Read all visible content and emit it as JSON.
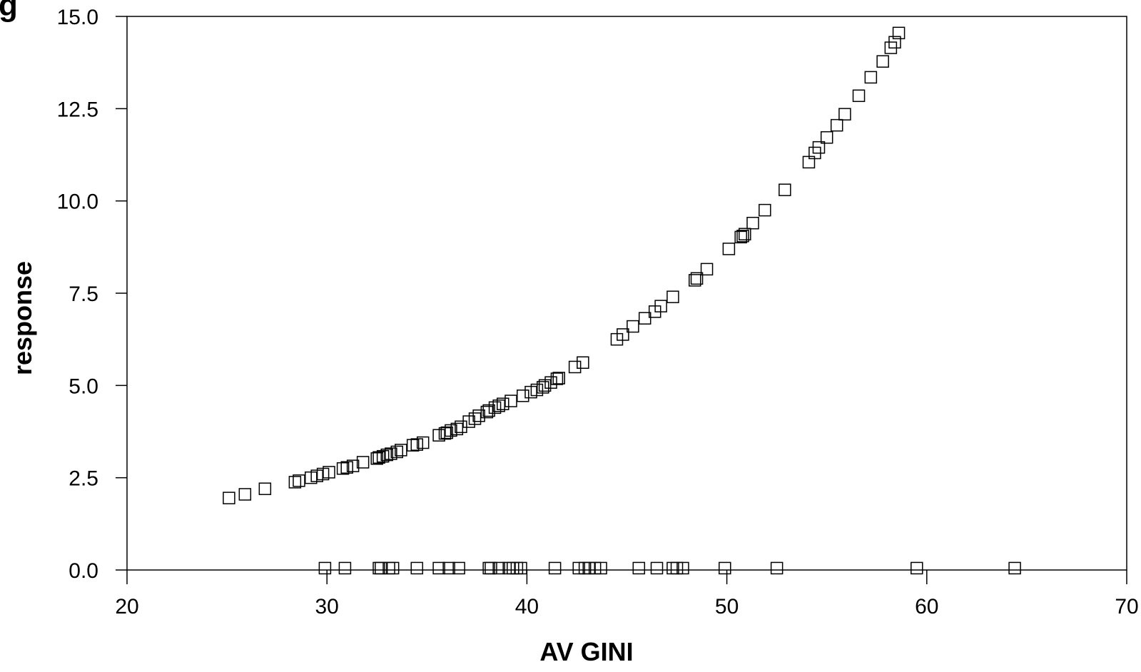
{
  "chart_data": {
    "type": "scatter",
    "title_fragment": "g",
    "xlabel": "AV GINI",
    "ylabel": "response",
    "xlim": [
      20,
      70
    ],
    "ylim": [
      0,
      15
    ],
    "xticks": [
      "20",
      "30",
      "40",
      "50",
      "60",
      "70"
    ],
    "yticks": [
      "0.0",
      "2.5",
      "5.0",
      "7.5",
      "10.0",
      "12.5",
      "15.0"
    ],
    "marker": "open-square",
    "grid": false,
    "x": [
      25.1,
      25.9,
      26.9,
      28.4,
      28.6,
      29.2,
      29.5,
      29.8,
      30.1,
      30.8,
      31.0,
      31.3,
      31.8,
      32.5,
      32.6,
      32.8,
      33.0,
      33.2,
      33.5,
      33.7,
      34.3,
      34.5,
      34.8,
      35.6,
      35.9,
      36.0,
      36.2,
      36.5,
      36.7,
      37.1,
      37.4,
      37.6,
      38.0,
      38.1,
      38.4,
      38.6,
      38.8,
      39.2,
      39.8,
      40.2,
      40.5,
      40.8,
      40.9,
      41.2,
      41.5,
      41.6,
      42.4,
      42.8,
      44.5,
      44.8,
      45.3,
      45.9,
      46.4,
      46.7,
      47.3,
      48.4,
      48.5,
      49.0,
      50.1,
      50.7,
      50.8,
      50.9,
      51.3,
      51.9,
      52.9,
      54.1,
      54.4,
      54.6,
      55.0,
      55.5,
      55.9,
      56.6,
      57.2,
      57.8,
      58.2,
      58.4,
      58.6,
      29.9,
      30.9,
      32.6,
      32.7,
      33.1,
      33.3,
      34.5,
      35.6,
      36.1,
      36.6,
      38.1,
      38.2,
      38.6,
      39.1,
      39.3,
      39.5,
      39.7,
      41.4,
      42.6,
      42.9,
      43.1,
      43.4,
      43.7,
      45.6,
      46.5,
      47.3,
      47.5,
      47.8,
      49.9,
      52.5,
      59.5,
      64.4
    ],
    "y": [
      1.95,
      2.05,
      2.2,
      2.38,
      2.42,
      2.5,
      2.55,
      2.6,
      2.65,
      2.75,
      2.78,
      2.82,
      2.92,
      3.02,
      3.05,
      3.08,
      3.12,
      3.15,
      3.2,
      3.25,
      3.38,
      3.4,
      3.45,
      3.65,
      3.7,
      3.72,
      3.78,
      3.82,
      3.88,
      4.02,
      4.1,
      4.18,
      4.28,
      4.32,
      4.4,
      4.45,
      4.5,
      4.58,
      4.72,
      4.82,
      4.88,
      4.95,
      5.0,
      5.08,
      5.18,
      5.2,
      5.5,
      5.62,
      6.25,
      6.38,
      6.6,
      6.82,
      7.0,
      7.15,
      7.4,
      7.85,
      7.9,
      8.15,
      8.7,
      9.02,
      9.05,
      9.1,
      9.4,
      9.75,
      10.3,
      11.05,
      11.3,
      11.45,
      11.72,
      12.05,
      12.35,
      12.85,
      13.35,
      13.78,
      14.15,
      14.3,
      14.55,
      0.05,
      0.05,
      0.05,
      0.05,
      0.05,
      0.05,
      0.05,
      0.05,
      0.05,
      0.05,
      0.05,
      0.05,
      0.05,
      0.05,
      0.05,
      0.05,
      0.05,
      0.05,
      0.05,
      0.05,
      0.05,
      0.05,
      0.05,
      0.05,
      0.05,
      0.05,
      0.05,
      0.05,
      0.05,
      0.05,
      0.05,
      0.05
    ]
  }
}
